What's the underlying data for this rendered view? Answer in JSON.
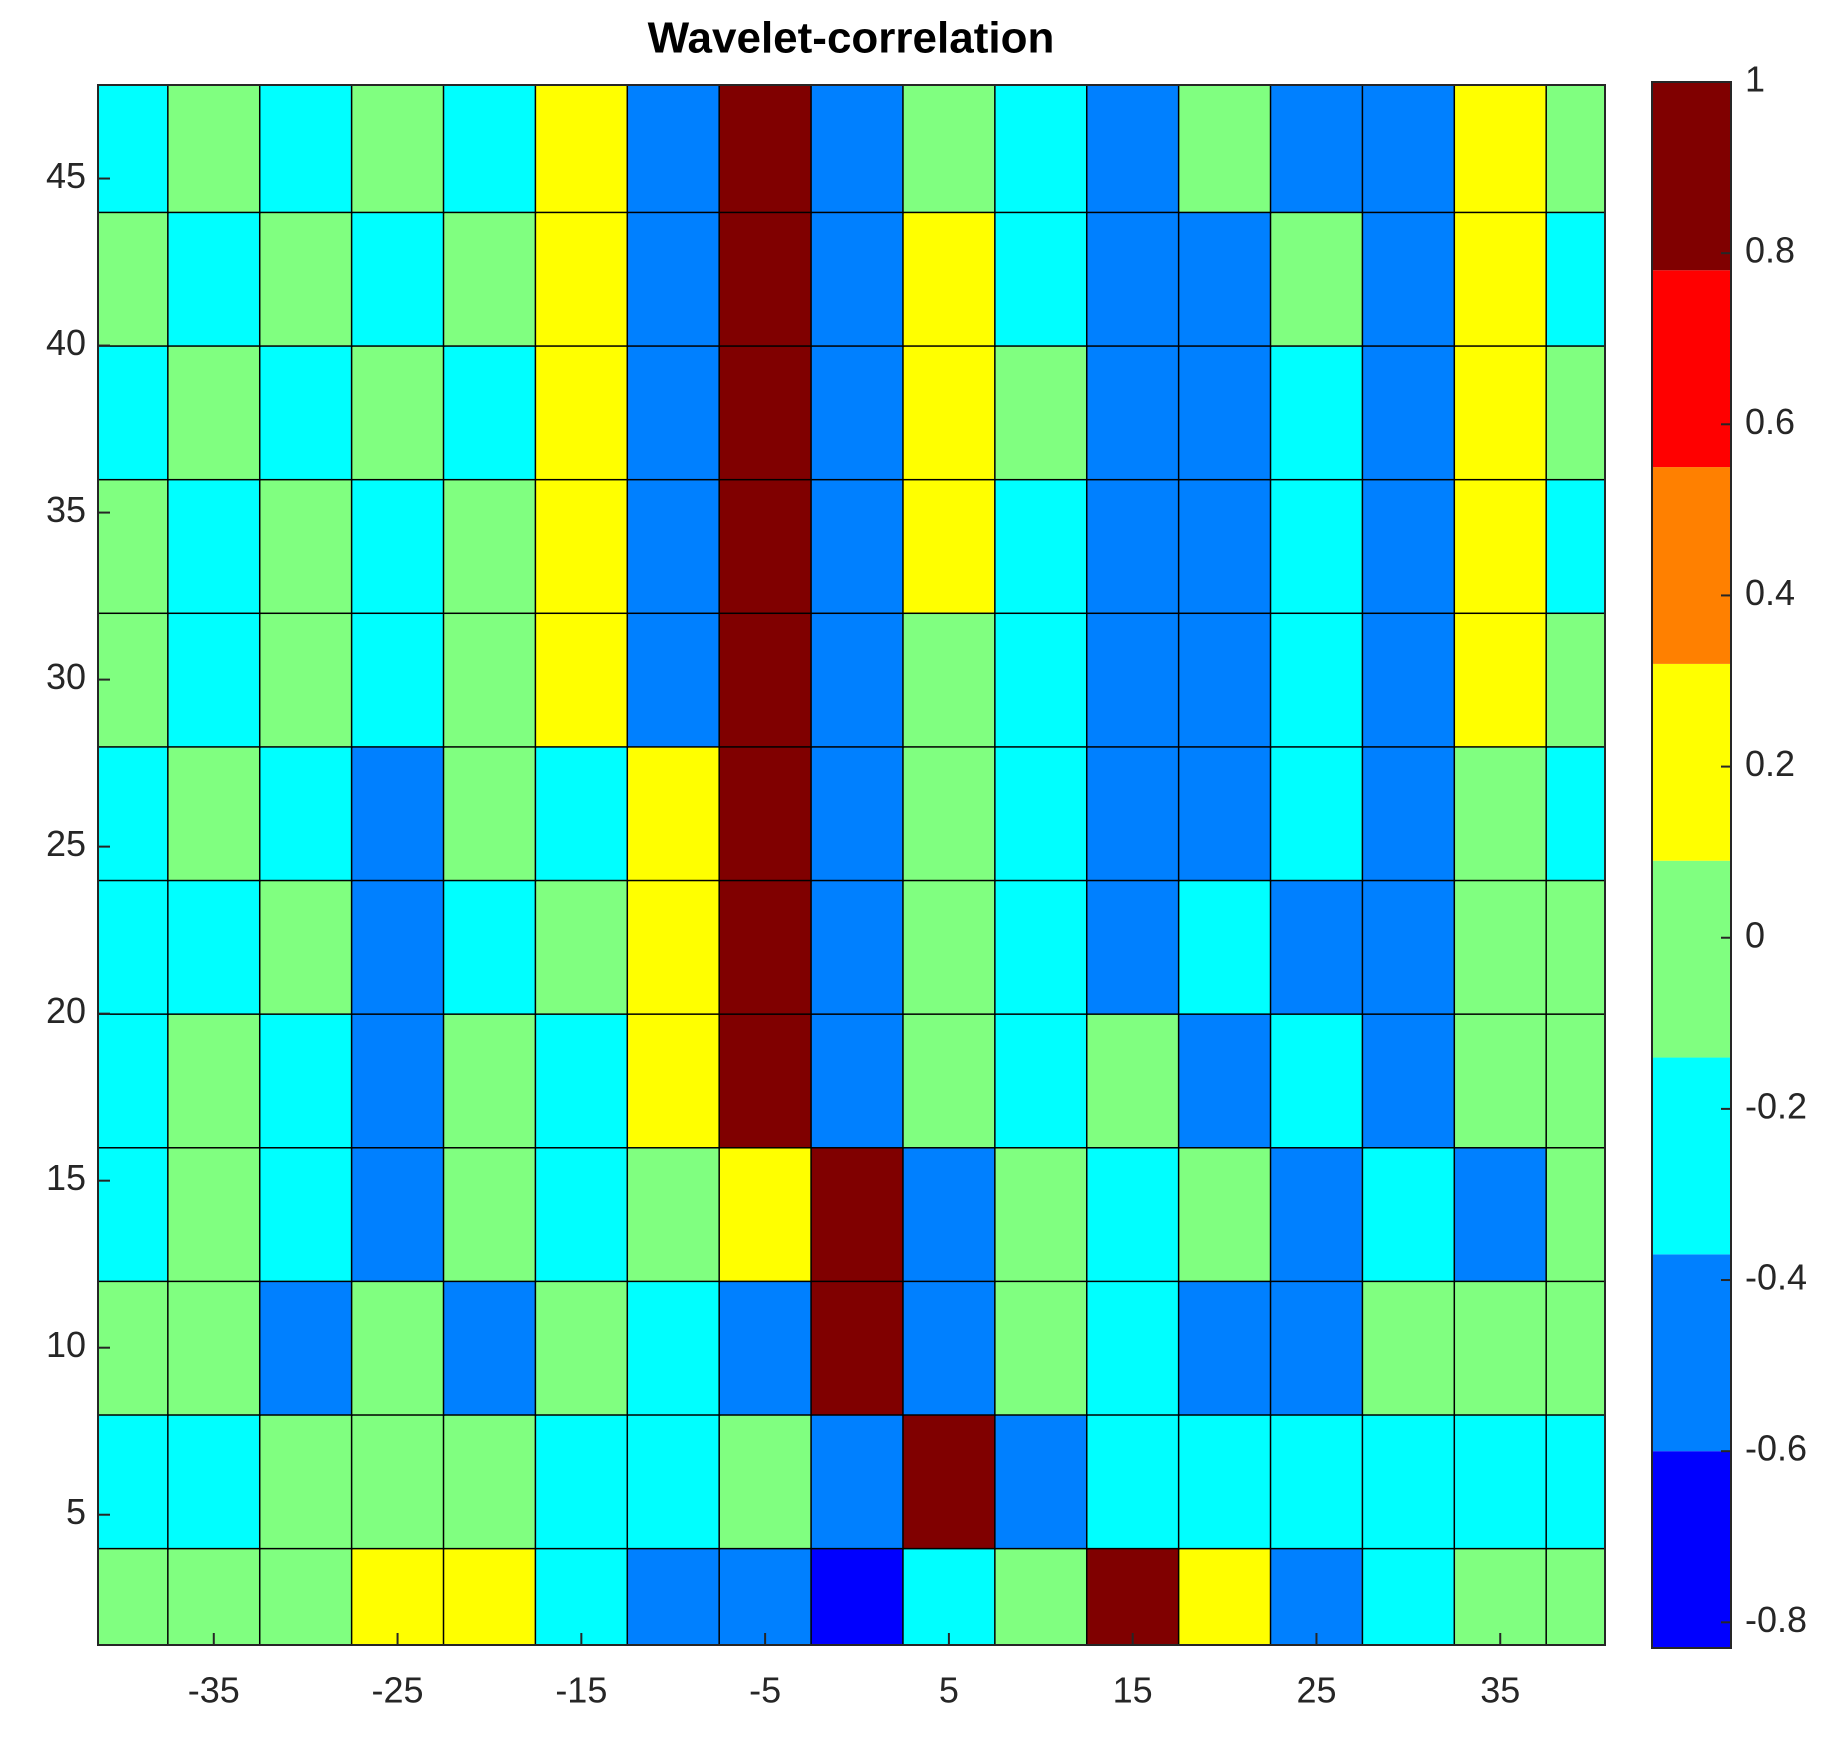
{
  "chart_data": {
    "type": "contourf",
    "title": "Wavelet-correlation",
    "x": [
      -40,
      -35,
      -30,
      -25,
      -20,
      -15,
      -10,
      -5,
      0,
      5,
      10,
      15,
      20,
      25,
      30,
      35,
      40
    ],
    "y": [
      2,
      6,
      10,
      14,
      18,
      22,
      26,
      30,
      34,
      38,
      42,
      46
    ],
    "z": [
      [
        0,
        0,
        0,
        0.2,
        0.2,
        -0.2,
        -0.5,
        -0.5,
        -0.7,
        -0.2,
        0,
        0.8,
        0.2,
        -0.4,
        -0.2,
        0,
        0
      ],
      [
        -0.2,
        -0.2,
        0,
        0,
        0,
        -0.2,
        -0.2,
        0,
        -0.5,
        0.8,
        -0.4,
        -0.2,
        -0.2,
        -0.2,
        -0.2,
        -0.2,
        -0.2
      ],
      [
        0,
        0,
        -0.4,
        0,
        -0.4,
        0,
        -0.2,
        -0.5,
        0.8,
        -0.5,
        0,
        -0.2,
        -0.4,
        -0.4,
        0,
        0,
        0
      ],
      [
        -0.2,
        0,
        -0.2,
        -0.4,
        0,
        -0.2,
        0,
        0.2,
        0.8,
        -0.4,
        0,
        -0.2,
        0,
        -0.4,
        -0.2,
        -0.4,
        0
      ],
      [
        -0.2,
        0,
        -0.2,
        -0.4,
        0,
        -0.2,
        0.2,
        0.8,
        -0.4,
        0,
        -0.2,
        0,
        -0.4,
        -0.2,
        -0.4,
        0,
        0
      ],
      [
        -0.2,
        -0.2,
        0,
        -0.4,
        -0.2,
        0,
        0.2,
        0.8,
        -0.4,
        0,
        -0.2,
        -0.4,
        -0.2,
        -0.4,
        -0.4,
        0,
        0
      ],
      [
        -0.2,
        0,
        -0.2,
        -0.4,
        0,
        -0.2,
        0.2,
        0.8,
        -0.4,
        0,
        -0.2,
        -0.4,
        -0.4,
        -0.2,
        -0.4,
        0,
        -0.2
      ],
      [
        0,
        -0.2,
        0,
        -0.2,
        0,
        0.2,
        -0.4,
        0.8,
        -0.4,
        0,
        -0.2,
        -0.4,
        -0.4,
        -0.2,
        -0.4,
        0.2,
        0
      ],
      [
        0,
        -0.2,
        0,
        -0.2,
        0,
        0.2,
        -0.4,
        0.8,
        -0.4,
        0.2,
        -0.2,
        -0.4,
        -0.4,
        -0.2,
        -0.4,
        0.2,
        -0.2
      ],
      [
        -0.2,
        0,
        -0.2,
        0,
        -0.2,
        0.2,
        -0.4,
        0.8,
        -0.4,
        0.2,
        0,
        -0.4,
        -0.4,
        -0.2,
        -0.4,
        0.2,
        0
      ],
      [
        0,
        -0.2,
        0,
        -0.2,
        0,
        0.2,
        -0.4,
        0.8,
        -0.4,
        0.2,
        -0.2,
        -0.4,
        -0.4,
        0,
        -0.4,
        0.2,
        -0.2
      ],
      [
        -0.2,
        0,
        -0.2,
        0,
        -0.2,
        0.2,
        -0.4,
        0.8,
        -0.4,
        0,
        -0.2,
        -0.4,
        0,
        -0.4,
        -0.4,
        0.2,
        0
      ]
    ],
    "levels": [
      -0.83,
      -0.6,
      -0.37,
      -0.14,
      0.09,
      0.32,
      0.55,
      0.78,
      1
    ],
    "colors": [
      "#0000ff",
      "#0080ff",
      "#00ffff",
      "#80ff80",
      "#ffff00",
      "#ff8000",
      "#ff0000",
      "#800000"
    ],
    "xlim": [
      -41.3,
      40.7
    ],
    "ylim": [
      1.1,
      47.8
    ],
    "xticks": [
      -35,
      -25,
      -15,
      -5,
      5,
      15,
      25,
      35
    ],
    "yticks": [
      5,
      10,
      15,
      20,
      25,
      30,
      35,
      40,
      45
    ],
    "clim": [
      -0.83,
      1
    ],
    "cticks": [
      -0.8,
      -0.6,
      -0.4,
      -0.2,
      0,
      0.2,
      0.4,
      0.6,
      0.8,
      1
    ]
  }
}
